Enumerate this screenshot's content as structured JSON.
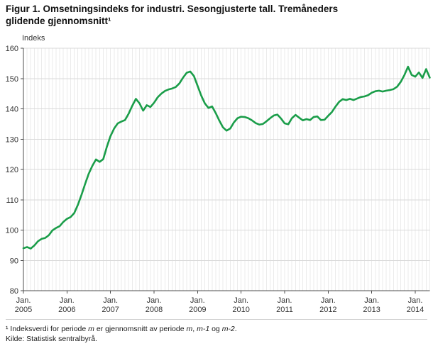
{
  "title": {
    "line1": "Figur 1. Omsetningsindeks for industri. Sesongjusterte tall. Tremåneders",
    "line2": "glidende gjennomsnitt¹"
  },
  "y_axis_label": "Indeks",
  "footnote_parts": [
    {
      "t": "¹ Indeksverdi for periode ",
      "i": false
    },
    {
      "t": "m",
      "i": true
    },
    {
      "t": " er gjennomsnitt av periode ",
      "i": false
    },
    {
      "t": "m",
      "i": true
    },
    {
      "t": ", ",
      "i": false
    },
    {
      "t": "m-1",
      "i": true
    },
    {
      "t": " og ",
      "i": false
    },
    {
      "t": "m-2",
      "i": true
    },
    {
      "t": ".",
      "i": false
    }
  ],
  "source": "Kilde: Statistisk sentralbyrå.",
  "chart_data": {
    "type": "line",
    "title": "Omsetningsindeks for industri. Sesongjusterte tall. Tremåneders glidende gjennomsnitt",
    "xlabel": "",
    "ylabel": "Indeks",
    "ylim": [
      80,
      160
    ],
    "y_ticks": [
      80,
      90,
      100,
      110,
      120,
      130,
      140,
      150,
      160
    ],
    "x_tick_month_label": "Jan.",
    "x_tick_years": [
      "2005",
      "2006",
      "2007",
      "2008",
      "2009",
      "2010",
      "2011",
      "2012",
      "2013",
      "2014"
    ],
    "x_start": "2005-01",
    "x_frequency": "monthly",
    "grid": true,
    "legend": false,
    "line_color": "#1a9d49",
    "values": [
      94.0,
      94.4,
      93.9,
      94.9,
      96.3,
      97.1,
      97.4,
      98.3,
      99.9,
      100.7,
      101.3,
      102.7,
      103.7,
      104.3,
      105.6,
      108.3,
      111.6,
      115.2,
      118.6,
      121.2,
      123.3,
      122.5,
      123.4,
      127.5,
      131.0,
      133.5,
      135.2,
      135.8,
      136.3,
      138.4,
      141.0,
      143.3,
      141.8,
      139.4,
      141.2,
      140.6,
      142.0,
      143.8,
      145.0,
      145.9,
      146.4,
      146.7,
      147.2,
      148.4,
      150.3,
      151.9,
      152.3,
      150.8,
      147.6,
      144.4,
      141.8,
      140.3,
      140.8,
      138.6,
      136.1,
      133.9,
      132.8,
      133.5,
      135.5,
      136.9,
      137.4,
      137.3,
      136.9,
      136.2,
      135.3,
      134.8,
      135.0,
      135.9,
      136.9,
      137.8,
      138.1,
      136.8,
      135.2,
      134.9,
      136.9,
      138.0,
      137.1,
      136.2,
      136.6,
      136.3,
      137.3,
      137.5,
      136.3,
      136.4,
      137.7,
      138.9,
      140.7,
      142.3,
      143.2,
      142.9,
      143.3,
      142.9,
      143.4,
      143.9,
      144.1,
      144.5,
      145.3,
      145.8,
      146.0,
      145.7,
      146.0,
      146.2,
      146.5,
      147.3,
      148.9,
      151.1,
      153.9,
      151.2,
      150.6,
      152.0,
      150.2,
      153.1,
      150.3
    ]
  }
}
